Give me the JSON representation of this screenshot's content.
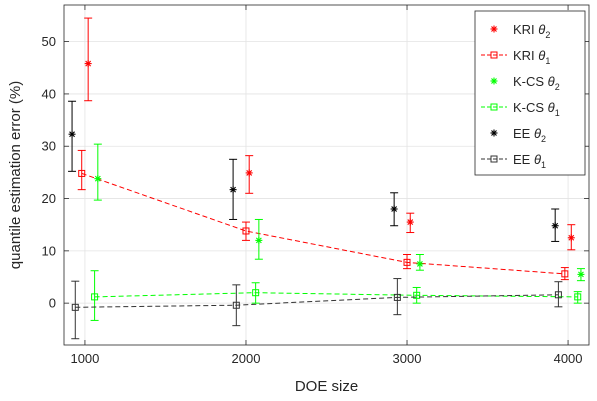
{
  "chart_data": {
    "type": "scatter",
    "xlabel": "DOE size",
    "ylabel": "quantile estimation error (%)",
    "xlim": [
      870,
      4130
    ],
    "ylim": [
      -8,
      57
    ],
    "xticks": [
      1000,
      2000,
      3000,
      4000
    ],
    "xtick_labels": [
      "1000",
      "2000",
      "3000",
      "4000"
    ],
    "yticks": [
      0,
      10,
      20,
      30,
      40,
      50
    ],
    "ytick_labels": [
      "0",
      "10",
      "20",
      "30",
      "40",
      "50"
    ],
    "grid": true,
    "legend_position": "top-right",
    "series": [
      {
        "name": "KRI θ2",
        "label_base": "KRI",
        "label_sub": "2",
        "color": "#ff0000",
        "marker": "star",
        "line": false,
        "points": [
          {
            "x": 1020,
            "y": 45.8,
            "lo": 38.7,
            "hi": 54.5
          },
          {
            "x": 2020,
            "y": 24.9,
            "lo": 21.0,
            "hi": 28.2
          },
          {
            "x": 3020,
            "y": 15.5,
            "lo": 13.5,
            "hi": 17.2
          },
          {
            "x": 4020,
            "y": 12.5,
            "lo": 10.2,
            "hi": 15.0
          }
        ]
      },
      {
        "name": "KRI θ1",
        "label_base": "KRI",
        "label_sub": "1",
        "color": "#ff0000",
        "marker": "square",
        "line": true,
        "points": [
          {
            "x": 980,
            "y": 24.8,
            "lo": 21.7,
            "hi": 29.2
          },
          {
            "x": 2000,
            "y": 13.8,
            "lo": 12.0,
            "hi": 15.5
          },
          {
            "x": 3000,
            "y": 7.8,
            "lo": 6.6,
            "hi": 9.3
          },
          {
            "x": 3980,
            "y": 5.6,
            "lo": 4.5,
            "hi": 6.8
          }
        ]
      },
      {
        "name": "K-CS θ2",
        "label_base": "K-CS",
        "label_sub": "2",
        "color": "#00ff00",
        "marker": "star",
        "line": false,
        "points": [
          {
            "x": 1080,
            "y": 23.8,
            "lo": 19.7,
            "hi": 30.4
          },
          {
            "x": 2080,
            "y": 12.0,
            "lo": 8.4,
            "hi": 16.0
          },
          {
            "x": 3080,
            "y": 7.5,
            "lo": 6.3,
            "hi": 9.3
          },
          {
            "x": 4080,
            "y": 5.5,
            "lo": 4.3,
            "hi": 6.6
          }
        ]
      },
      {
        "name": "K-CS θ1",
        "label_base": "K-CS",
        "label_sub": "1",
        "color": "#00ff00",
        "marker": "square",
        "line": true,
        "points": [
          {
            "x": 1060,
            "y": 1.2,
            "lo": -3.3,
            "hi": 6.2
          },
          {
            "x": 2060,
            "y": 2.0,
            "lo": 0.0,
            "hi": 3.9
          },
          {
            "x": 3060,
            "y": 1.5,
            "lo": 0.0,
            "hi": 3.0
          },
          {
            "x": 4060,
            "y": 1.2,
            "lo": 0.0,
            "hi": 2.2
          }
        ]
      },
      {
        "name": "EE θ2",
        "label_base": "EE",
        "label_sub": "2",
        "color": "#000000",
        "marker": "star",
        "line": false,
        "points": [
          {
            "x": 920,
            "y": 32.3,
            "lo": 25.2,
            "hi": 38.6
          },
          {
            "x": 1920,
            "y": 21.7,
            "lo": 16.0,
            "hi": 27.5
          },
          {
            "x": 2920,
            "y": 18.0,
            "lo": 14.8,
            "hi": 21.1
          },
          {
            "x": 3920,
            "y": 14.8,
            "lo": 11.8,
            "hi": 18.0
          }
        ]
      },
      {
        "name": "EE θ1",
        "label_base": "EE",
        "label_sub": "1",
        "color": "#333333",
        "marker": "square",
        "line": true,
        "points": [
          {
            "x": 940,
            "y": -0.8,
            "lo": -6.8,
            "hi": 4.2
          },
          {
            "x": 1940,
            "y": -0.4,
            "lo": -4.3,
            "hi": 3.5
          },
          {
            "x": 2940,
            "y": 1.1,
            "lo": -2.2,
            "hi": 4.7
          },
          {
            "x": 3940,
            "y": 1.6,
            "lo": -0.7,
            "hi": 4.1
          }
        ]
      }
    ]
  }
}
